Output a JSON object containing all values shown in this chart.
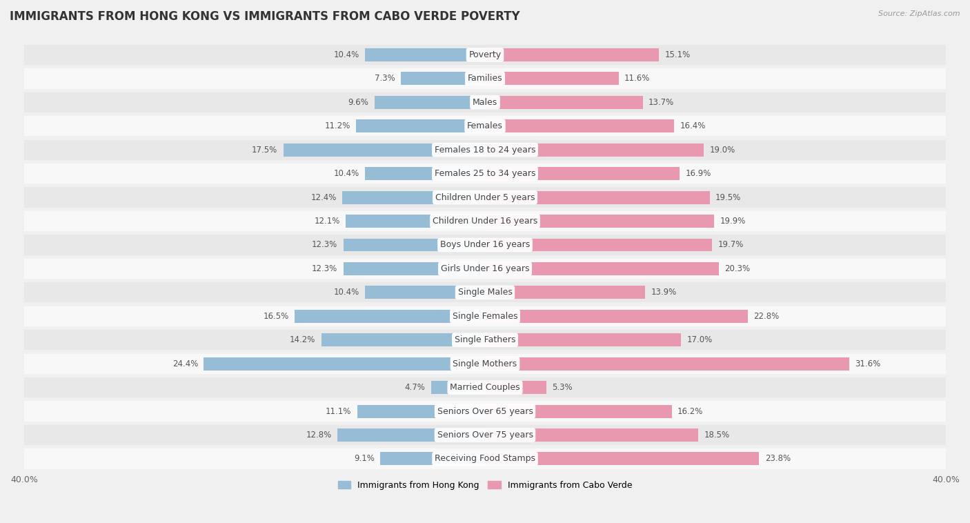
{
  "title": "IMMIGRANTS FROM HONG KONG VS IMMIGRANTS FROM CABO VERDE POVERTY",
  "source": "Source: ZipAtlas.com",
  "categories": [
    "Poverty",
    "Families",
    "Males",
    "Females",
    "Females 18 to 24 years",
    "Females 25 to 34 years",
    "Children Under 5 years",
    "Children Under 16 years",
    "Boys Under 16 years",
    "Girls Under 16 years",
    "Single Males",
    "Single Females",
    "Single Fathers",
    "Single Mothers",
    "Married Couples",
    "Seniors Over 65 years",
    "Seniors Over 75 years",
    "Receiving Food Stamps"
  ],
  "hong_kong_values": [
    10.4,
    7.3,
    9.6,
    11.2,
    17.5,
    10.4,
    12.4,
    12.1,
    12.3,
    12.3,
    10.4,
    16.5,
    14.2,
    24.4,
    4.7,
    11.1,
    12.8,
    9.1
  ],
  "cabo_verde_values": [
    15.1,
    11.6,
    13.7,
    16.4,
    19.0,
    16.9,
    19.5,
    19.9,
    19.7,
    20.3,
    13.9,
    22.8,
    17.0,
    31.6,
    5.3,
    16.2,
    18.5,
    23.8
  ],
  "hong_kong_color": "#97bdd6",
  "cabo_verde_color": "#e899b0",
  "hong_kong_label": "Immigrants from Hong Kong",
  "cabo_verde_label": "Immigrants from Cabo Verde",
  "xlim": 40.0,
  "background_color": "#f0f0f0",
  "row_color_odd": "#e8e8e8",
  "row_color_even": "#f8f8f8",
  "title_fontsize": 12,
  "label_fontsize": 9,
  "value_fontsize": 8.5
}
